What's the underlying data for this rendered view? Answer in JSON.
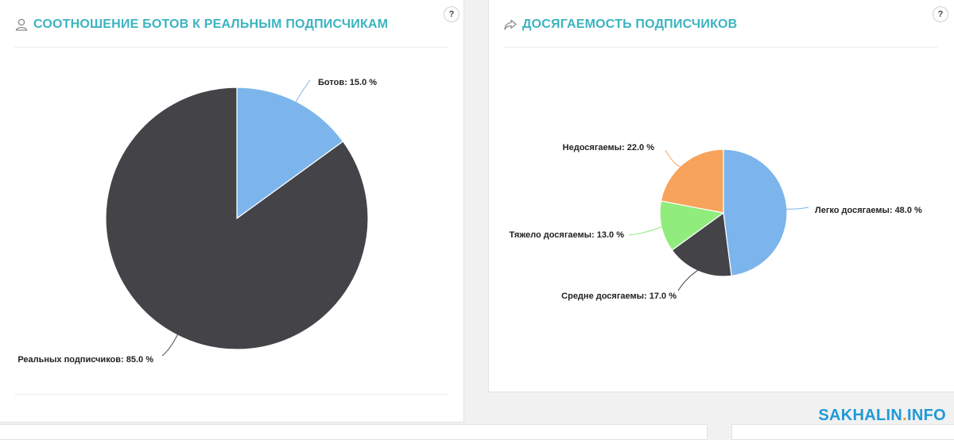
{
  "left_panel": {
    "title": "СООТНОШЕНИЕ БОТОВ К РЕАЛЬНЫМ ПОДПИСЧИКАМ",
    "icon": "user-icon",
    "help_label": "?"
  },
  "right_panel": {
    "title": "ДОСЯГАЕМОСТЬ ПОДПИСЧИКОВ",
    "icon": "share-arrow-icon",
    "help_label": "?"
  },
  "watermark": {
    "part1": "SAKHALIN",
    "sep": ".",
    "part2": "INFO"
  },
  "chart_data": [
    {
      "type": "pie",
      "title": "СООТНОШЕНИЕ БОТОВ К РЕАЛЬНЫМ ПОДПИСЧИКАМ",
      "slices": [
        {
          "label": "Ботов",
          "value": 15.0,
          "display": "Ботов: 15.0 %",
          "color": "#7cb5ec"
        },
        {
          "label": "Реальных подписчиков",
          "value": 85.0,
          "display": "Реальных подписчиков: 85.0 %",
          "color": "#434348"
        }
      ]
    },
    {
      "type": "pie",
      "title": "ДОСЯГАЕМОСТЬ ПОДПИСЧИКОВ",
      "slices": [
        {
          "label": "Легко досягаемы",
          "value": 48.0,
          "display": "Легко досягаемы: 48.0 %",
          "color": "#7cb5ec"
        },
        {
          "label": "Средне досягаемы",
          "value": 17.0,
          "display": "Средне досягаемы: 17.0 %",
          "color": "#434348"
        },
        {
          "label": "Тяжело досягаемы",
          "value": 13.0,
          "display": "Тяжело досягаемы: 13.0 %",
          "color": "#90ed7d"
        },
        {
          "label": "Недосягаемы",
          "value": 22.0,
          "display": "Недосягаемы: 22.0 %",
          "color": "#f7a35c"
        }
      ]
    }
  ]
}
